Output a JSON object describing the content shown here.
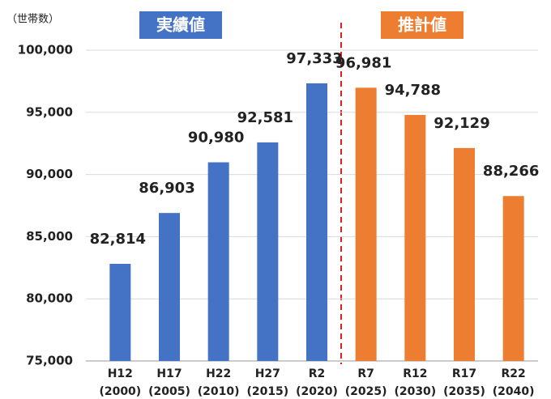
{
  "chart_data": {
    "type": "bar",
    "y_axis_label": "（世帯数）",
    "categories": [
      "H12",
      "H17",
      "H22",
      "H27",
      "R2",
      "R7",
      "R12",
      "R17",
      "R22"
    ],
    "category_years": [
      "(2000)",
      "(2005)",
      "(2010)",
      "(2015)",
      "(2020)",
      "(2025)",
      "(2030)",
      "(2035)",
      "(2040)"
    ],
    "series": [
      {
        "name": "実績値",
        "color": "#4472c4",
        "values": [
          82814,
          86903,
          90980,
          92581,
          97333,
          null,
          null,
          null,
          null
        ],
        "value_labels": [
          "82,814",
          "86,903",
          "90,980",
          "92,581",
          "97,333",
          null,
          null,
          null,
          null
        ]
      },
      {
        "name": "推計値",
        "color": "#ed7d31",
        "values": [
          null,
          null,
          null,
          null,
          null,
          96981,
          94788,
          92129,
          88266
        ],
        "value_labels": [
          null,
          null,
          null,
          null,
          null,
          "96,981",
          "94,788",
          "92,129",
          "88,266"
        ]
      }
    ],
    "ylim": [
      75000,
      100000
    ],
    "yticks": [
      {
        "value": 75000,
        "label": "75,000"
      },
      {
        "value": 80000,
        "label": "80,000"
      },
      {
        "value": 85000,
        "label": "85,000"
      },
      {
        "value": 90000,
        "label": "90,000"
      },
      {
        "value": 95000,
        "label": "95,000"
      },
      {
        "value": 100000,
        "label": "100,000"
      }
    ],
    "grid": true
  }
}
